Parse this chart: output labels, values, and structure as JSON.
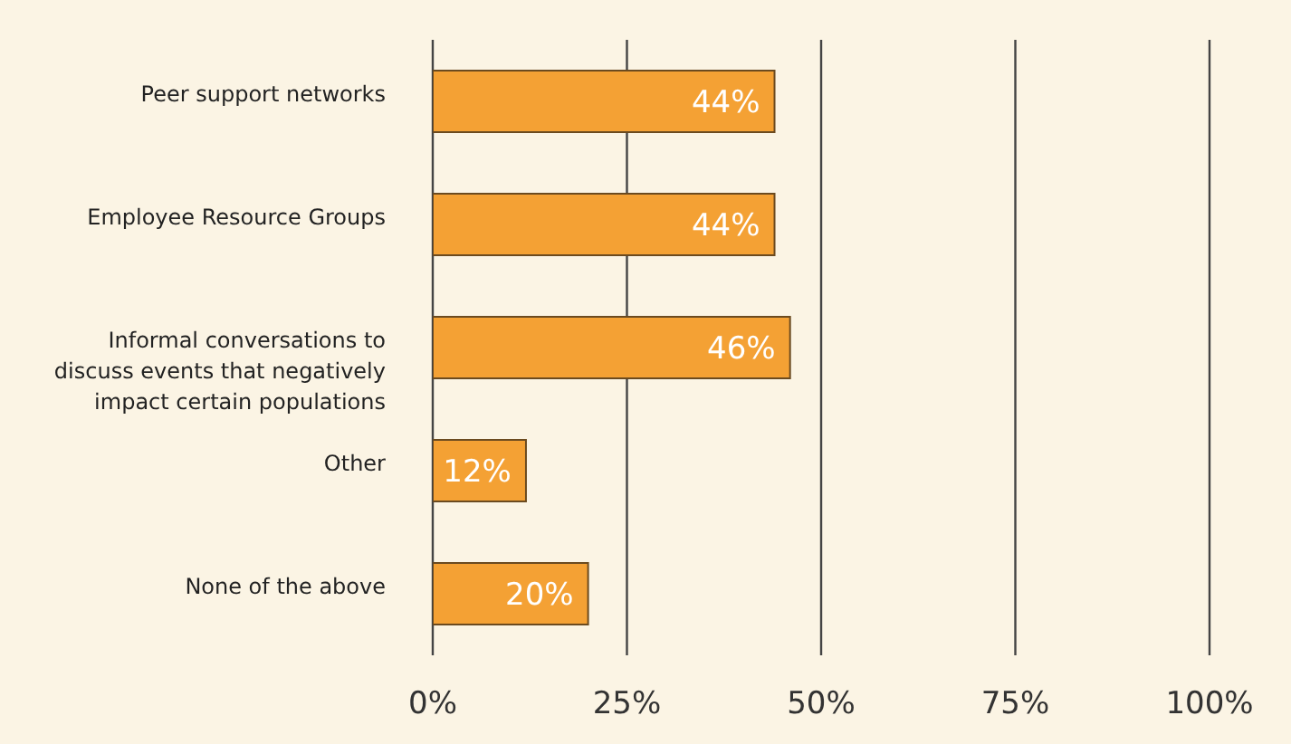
{
  "chart_data": {
    "type": "bar",
    "orientation": "horizontal",
    "categories": [
      "Peer support networks",
      "Employee Resource Groups",
      "Informal conversations to discuss events that negatively impact certain populations",
      "Other",
      "None of the above"
    ],
    "values": [
      44,
      44,
      46,
      12,
      20
    ],
    "color": "#f4a134",
    "xlim": [
      0,
      100
    ],
    "xticks": [
      {
        "value": 0,
        "label": "0%"
      },
      {
        "value": 25,
        "label": "25%"
      },
      {
        "value": 50,
        "label": "50%"
      },
      {
        "value": 75,
        "label": "75%"
      },
      {
        "value": 100,
        "label": "100%"
      }
    ],
    "value_labels": [
      "44%",
      "44%",
      "46%",
      "12%",
      "20%"
    ],
    "grid": "x"
  }
}
